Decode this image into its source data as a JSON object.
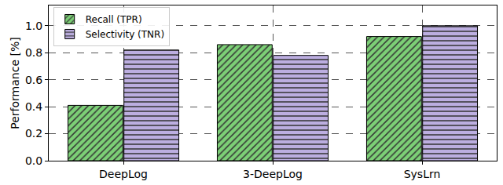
{
  "chart_data": {
    "type": "bar",
    "y_label": "Performance [%]",
    "categories": [
      "DeepLog",
      "3-DeepLog",
      "SysLrn"
    ],
    "series": [
      {
        "name": "Recall (TPR)",
        "color": "#7ccf76",
        "values": [
          0.41,
          0.86,
          0.92
        ]
      },
      {
        "name": "Selectivity (TNR)",
        "color": "#bcaee0",
        "values": [
          0.82,
          0.78,
          1.0
        ]
      }
    ],
    "ylim": [
      0,
      1.15
    ],
    "yticks": [
      {
        "value": 0,
        "label": "0.0"
      },
      {
        "value": 0.2,
        "label": "0.2"
      },
      {
        "value": 0.4,
        "label": "0.4"
      },
      {
        "value": 0.6,
        "label": "0.6"
      },
      {
        "value": 0.8,
        "label": "0.8"
      },
      {
        "value": 1.0,
        "label": "1.0"
      }
    ],
    "grid": true,
    "legend": "upper left"
  }
}
